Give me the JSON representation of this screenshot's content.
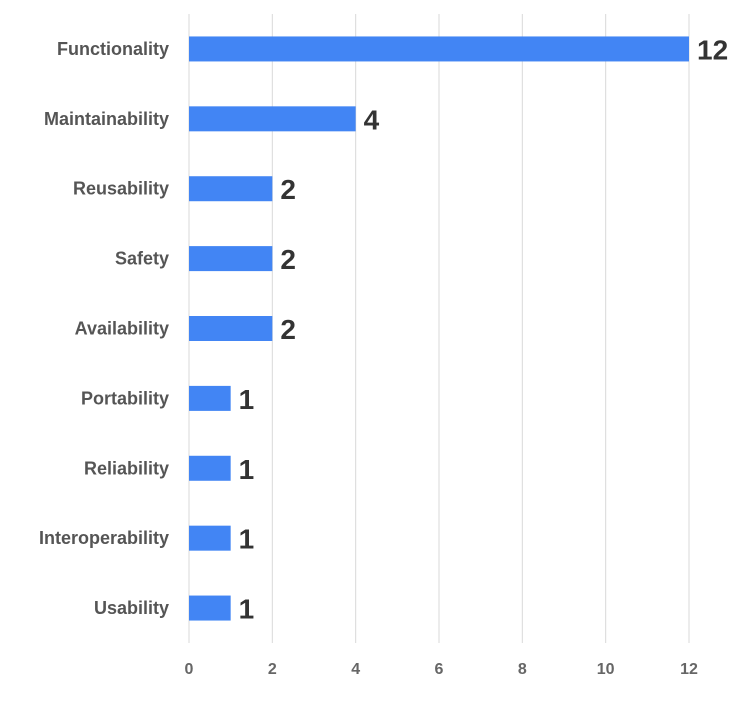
{
  "colors": {
    "bar": "#4285f4",
    "grid": "#d9d9d9",
    "category_text": "#555555",
    "tick_text": "#666666",
    "data_label_text": "#333333"
  },
  "chart_data": {
    "type": "bar",
    "orientation": "horizontal",
    "title": "",
    "xlabel": "",
    "ylabel": "",
    "categories": [
      "Functionality",
      "Maintainability",
      "Reusability",
      "Safety",
      "Availability",
      "Portability",
      "Reliability",
      "Interoperability",
      "Usability"
    ],
    "values": [
      12,
      4,
      2,
      2,
      2,
      1,
      1,
      1,
      1
    ],
    "xlim": [
      0,
      12
    ],
    "x_ticks": [
      0,
      2,
      4,
      6,
      8,
      10,
      12
    ],
    "grid": "vertical",
    "legend": "none",
    "data_labels": true
  }
}
